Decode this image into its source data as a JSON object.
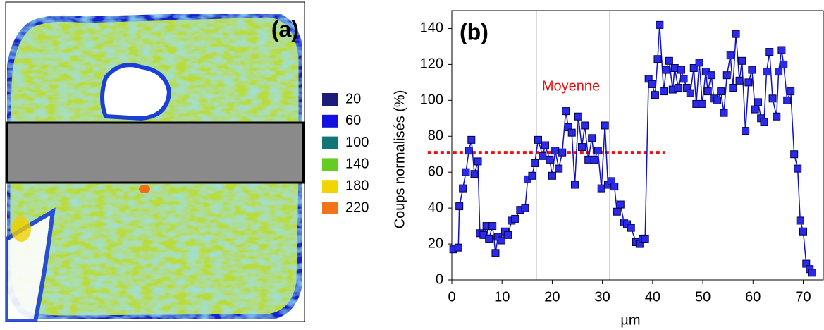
{
  "panel_a": {
    "label": "(a)",
    "legend": [
      {
        "label": "20",
        "color": "#1c1c7a"
      },
      {
        "label": "60",
        "color": "#1212e0"
      },
      {
        "label": "100",
        "color": "#127676"
      },
      {
        "label": "140",
        "color": "#66cc22"
      },
      {
        "label": "180",
        "color": "#f2d400"
      },
      {
        "label": "220",
        "color": "#f27418"
      }
    ]
  },
  "chart_data": {
    "type": "line",
    "panel_label": "(b)",
    "x_label": "µm",
    "y_label": "Coups normalisés (%)",
    "xlim": [
      0,
      74
    ],
    "ylim": [
      0,
      150
    ],
    "xticks": [
      0,
      10,
      20,
      30,
      40,
      50,
      60,
      70
    ],
    "yticks": [
      0,
      20,
      40,
      60,
      80,
      100,
      120,
      140
    ],
    "annotation": "Moyenne",
    "vlines": [
      16.8,
      31.5
    ],
    "mean_line": {
      "y": 71,
      "x_range": [
        -4.8,
        42.4
      ],
      "color": "#e81010"
    },
    "x": [
      0.3,
      1.3,
      1.5,
      2.2,
      2.8,
      3.4,
      3.9,
      4.5,
      5.2,
      5.6,
      6.3,
      6.9,
      7.4,
      8.1,
      8.7,
      9.2,
      9.9,
      10.6,
      11.2,
      11.9,
      12.6,
      13.6,
      14.6,
      15.1,
      16,
      16.5,
      17.2,
      18.1,
      18.6,
      19.5,
      20,
      20.6,
      21.3,
      22,
      22.7,
      23.2,
      23.9,
      24.5,
      25.2,
      25.9,
      26.5,
      27.2,
      27.9,
      28.4,
      29.1,
      29.8,
      30.5,
      31.1,
      31.8,
      32.4,
      32.9,
      33.6,
      34.3,
      34.9,
      35.7,
      36.7,
      37.4,
      38,
      38.5,
      39.2,
      39.9,
      40.5,
      41,
      41.4,
      42.2,
      42.7,
      43.3,
      44,
      44.4,
      45.1,
      45.7,
      46.2,
      46.8,
      47.5,
      48.2,
      48.7,
      49.3,
      49.9,
      50.6,
      51,
      51.7,
      52.2,
      52.9,
      53.6,
      54.2,
      54.8,
      55.5,
      56,
      56.6,
      57.3,
      57.8,
      58.5,
      59.1,
      59.8,
      60.4,
      61,
      61.6,
      62.2,
      62.7,
      63.3,
      63.9,
      64.7,
      65.1,
      65.7,
      66.1,
      66.8,
      67.5,
      68.2,
      68.9,
      69.4,
      70,
      70.6,
      71.3,
      71.8
    ],
    "series": [
      {
        "name": "Coups",
        "color": "#1010c8",
        "marker": "#2a2ae8",
        "values": [
          17,
          18,
          41,
          51,
          60,
          72,
          78,
          59,
          66,
          26,
          25,
          30,
          23,
          30,
          15,
          24,
          22,
          27,
          25,
          33,
          34,
          39,
          40,
          56,
          58,
          65,
          78,
          69,
          75,
          67,
          58,
          72,
          62,
          71,
          94,
          85,
          82,
          53,
          91,
          74,
          86,
          67,
          79,
          67,
          72,
          51,
          86,
          53,
          55,
          52,
          38,
          42,
          32,
          31,
          29,
          21,
          20,
          23,
          23,
          112,
          109,
          103,
          123,
          142,
          105,
          117,
          122,
          106,
          118,
          107,
          117,
          112,
          107,
          104,
          118,
          98,
          121,
          98,
          116,
          105,
          114,
          101,
          100,
          105,
          93,
          114,
          125,
          107,
          137,
          111,
          122,
          83,
          110,
          117,
          95,
          99,
          90,
          88,
          116,
          127,
          101,
          91,
          116,
          128,
          120,
          100,
          105,
          70,
          62,
          33,
          27,
          9,
          6,
          4
        ]
      }
    ]
  }
}
